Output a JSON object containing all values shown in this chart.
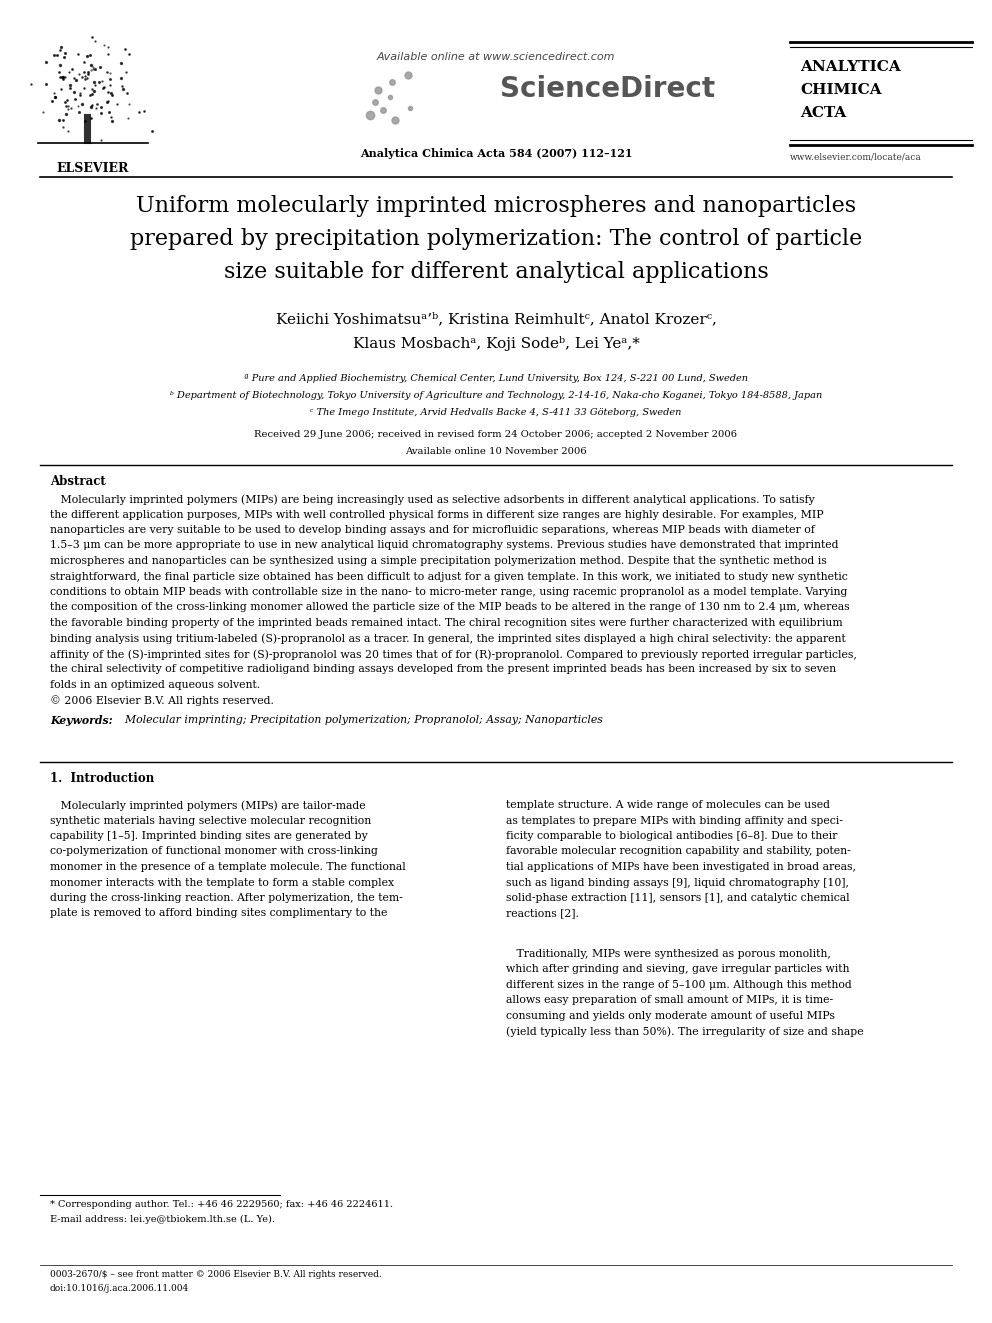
{
  "bg_color": "#ffffff",
  "title_line1": "Uniform molecularly imprinted microspheres and nanoparticles",
  "title_line2": "prepared by precipitation polymerization: The control of particle",
  "title_line3": "size suitable for different analytical applications",
  "aff_a": "ª Pure and Applied Biochemistry, Chemical Center, Lund University, Box 124, S-221 00 Lund, Sweden",
  "aff_b": "ᵇ Department of Biotechnology, Tokyo University of Agriculture and Technology, 2-14-16, Naka-cho Koganei, Tokyo 184-8588, Japan",
  "aff_c": "ᶜ The Imego Institute, Arvid Hedvalls Backe 4, S-411 33 Göteborg, Sweden",
  "received": "Received 29 June 2006; received in revised form 24 October 2006; accepted 2 November 2006",
  "available": "Available online 10 November 2006",
  "journal_header": "Analytica Chimica Acta 584 (2007) 112–121",
  "available_online": "Available online at www.sciencedirect.com",
  "journal_name_line1": "ANALYTICA",
  "journal_name_line2": "CHIMICA",
  "journal_name_line3": "ACTA",
  "journal_url": "www.elsevier.com/locate/aca",
  "elsevier_text": "ELSEVIER",
  "abstract_title": "Abstract",
  "keywords_label": "Keywords:",
  "keywords_text": "Molecular imprinting; Precipitation polymerization; Propranolol; Assay; Nanoparticles",
  "section1_title": "1.  Introduction",
  "footnote_star": "* Corresponding author. Tel.: +46 46 2229560; fax: +46 46 2224611.",
  "footnote_email": "E-mail address: lei.ye@tbiokem.lth.se (L. Ye).",
  "footnote_issn": "0003-2670/$ – see front matter © 2006 Elsevier B.V. All rights reserved.",
  "footnote_doi": "doi:10.1016/j.aca.2006.11.004",
  "abstract_lines": [
    "   Molecularly imprinted polymers (MIPs) are being increasingly used as selective adsorbents in different analytical applications. To satisfy",
    "the different application purposes, MIPs with well controlled physical forms in different size ranges are highly desirable. For examples, MIP",
    "nanoparticles are very suitable to be used to develop binding assays and for microfluidic separations, whereas MIP beads with diameter of",
    "1.5–3 μm can be more appropriate to use in new analytical liquid chromatography systems. Previous studies have demonstrated that imprinted",
    "microspheres and nanoparticles can be synthesized using a simple precipitation polymerization method. Despite that the synthetic method is",
    "straightforward, the final particle size obtained has been difficult to adjust for a given template. In this work, we initiated to study new synthetic",
    "conditions to obtain MIP beads with controllable size in the nano- to micro-meter range, using racemic propranolol as a model template. Varying",
    "the composition of the cross-linking monomer allowed the particle size of the MIP beads to be altered in the range of 130 nm to 2.4 μm, whereas",
    "the favorable binding property of the imprinted beads remained intact. The chiral recognition sites were further characterized with equilibrium",
    "binding analysis using tritium-labeled (S)-propranolol as a tracer. In general, the imprinted sites displayed a high chiral selectivity: the apparent",
    "affinity of the (S)-imprinted sites for (S)-propranolol was 20 times that of for (R)-propranolol. Compared to previously reported irregular particles,",
    "the chiral selectivity of competitive radioligand binding assays developed from the present imprinted beads has been increased by six to seven",
    "folds in an optimized aqueous solvent.",
    "© 2006 Elsevier B.V. All rights reserved."
  ],
  "col1_lines": [
    "   Molecularly imprinted polymers (MIPs) are tailor-made",
    "synthetic materials having selective molecular recognition",
    "capability [1–5]. Imprinted binding sites are generated by",
    "co-polymerization of functional monomer with cross-linking",
    "monomer in the presence of a template molecule. The functional",
    "monomer interacts with the template to form a stable complex",
    "during the cross-linking reaction. After polymerization, the tem-",
    "plate is removed to afford binding sites complimentary to the"
  ],
  "col2_lines": [
    "template structure. A wide range of molecules can be used",
    "as templates to prepare MIPs with binding affinity and speci-",
    "ficity comparable to biological antibodies [6–8]. Due to their",
    "favorable molecular recognition capability and stability, poten-",
    "tial applications of MIPs have been investigated in broad areas,",
    "such as ligand binding assays [9], liquid chromatography [10],",
    "solid-phase extraction [11], sensors [1], and catalytic chemical",
    "reactions [2].",
    "",
    "   Traditionally, MIPs were synthesized as porous monolith,",
    "which after grinding and sieving, gave irregular particles with",
    "different sizes in the range of 5–100 μm. Although this method",
    "allows easy preparation of small amount of MIPs, it is time-",
    "consuming and yields only moderate amount of useful MIPs",
    "(yield typically less than 50%). The irregularity of size and shape"
  ]
}
